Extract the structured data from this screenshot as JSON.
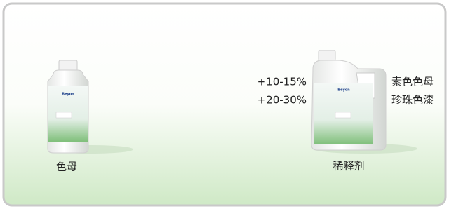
{
  "products": [
    {
      "label": "色母",
      "brand": "Beyon"
    },
    {
      "label": "稀释剂",
      "brand": "Beyon"
    }
  ],
  "ratios": [
    "+10-15%",
    "+20-30%"
  ],
  "paint_types": [
    "素色色母",
    "珍珠色漆"
  ]
}
